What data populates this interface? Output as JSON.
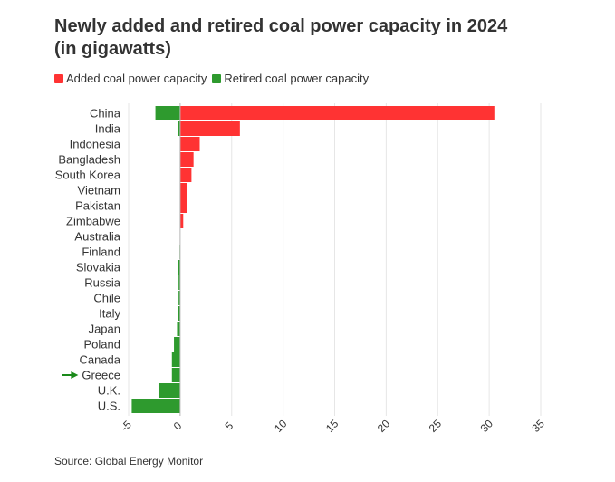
{
  "title_line1": "Newly added and retired coal power capacity in 2024",
  "title_line2": "(in gigawatts)",
  "source": "Source: Global Energy Monitor",
  "colors": {
    "added": "#ff3333",
    "retired": "#2e9a2e",
    "grid": "#e6e6e6",
    "text": "#333333",
    "marker": "#1a8a1a"
  },
  "chart_data": {
    "type": "bar",
    "orientation": "horizontal",
    "stacked": true,
    "categories": [
      "China",
      "India",
      "Indonesia",
      "Bangladesh",
      "South Korea",
      "Vietnam",
      "Pakistan",
      "Zimbabwe",
      "Australia",
      "Finland",
      "Slovakia",
      "Russia",
      "Chile",
      "Italy",
      "Japan",
      "Poland",
      "Canada",
      "Greece",
      "U.K.",
      "U.S."
    ],
    "series": [
      {
        "name": "Added coal power capacity",
        "values": [
          30.5,
          5.8,
          1.9,
          1.3,
          1.1,
          0.7,
          0.7,
          0.3,
          0,
          0,
          0,
          0,
          0,
          0,
          0,
          0,
          0,
          0,
          0,
          0
        ]
      },
      {
        "name": "Retired coal power capacity",
        "values": [
          -2.4,
          -0.2,
          0,
          0,
          0,
          0,
          0,
          0,
          0,
          -0.05,
          -0.2,
          -0.15,
          -0.15,
          -0.25,
          -0.3,
          -0.6,
          -0.8,
          -0.8,
          -2.1,
          -4.7
        ]
      }
    ],
    "xlim": [
      -5,
      35
    ],
    "xticks": [
      -5,
      0,
      5,
      10,
      15,
      20,
      25,
      30,
      35
    ],
    "highlight": "Greece",
    "grid": true,
    "legend": "top-left",
    "xlabel": "",
    "ylabel": ""
  }
}
